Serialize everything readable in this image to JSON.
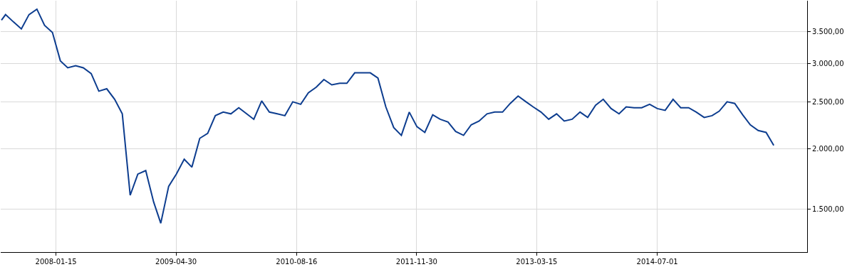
{
  "chart_data": {
    "type": "line",
    "log": "y",
    "grid": true,
    "marker": "none",
    "line_style": "solid",
    "x": [
      "2007-06-15",
      "2007-07",
      "2007-08",
      "2007-09",
      "2007-10",
      "2007-11",
      "2007-12",
      "2008-01",
      "2008-02",
      "2008-03",
      "2008-04",
      "2008-05",
      "2008-06",
      "2008-07",
      "2008-08",
      "2008-09",
      "2008-10",
      "2008-11",
      "2008-12",
      "2009-01",
      "2009-02",
      "2009-03",
      "2009-04",
      "2009-05",
      "2009-06",
      "2009-07",
      "2009-08",
      "2009-09",
      "2009-10",
      "2009-11",
      "2009-12",
      "2010-01",
      "2010-02",
      "2010-03",
      "2010-04",
      "2010-05",
      "2010-06",
      "2010-07",
      "2010-08",
      "2010-09",
      "2010-10",
      "2010-11",
      "2010-12",
      "2011-01",
      "2011-02",
      "2011-03",
      "2011-04",
      "2011-05",
      "2011-06",
      "2011-07",
      "2011-08",
      "2011-09",
      "2011-10",
      "2011-11",
      "2011-12",
      "2012-01",
      "2012-02",
      "2012-03",
      "2012-04",
      "2012-05",
      "2012-06",
      "2012-07",
      "2012-08",
      "2012-09",
      "2012-10",
      "2012-11",
      "2012-12",
      "2013-01",
      "2013-02",
      "2013-03",
      "2013-04",
      "2013-05",
      "2013-06",
      "2013-07",
      "2013-08",
      "2013-09",
      "2013-10",
      "2013-11",
      "2013-12",
      "2014-01",
      "2014-02",
      "2014-03",
      "2014-04",
      "2014-05",
      "2014-06",
      "2014-07",
      "2014-08",
      "2014-09",
      "2014-10",
      "2014-11",
      "2014-12",
      "2015-01",
      "2015-02",
      "2015-03",
      "2015-04",
      "2015-05",
      "2015-06",
      "2015-07",
      "2015-08",
      "2015-09",
      "2015-10"
    ],
    "series": [
      {
        "color": "#0d3d8f",
        "values": [
          3690,
          3790,
          3660,
          3540,
          3790,
          3890,
          3600,
          3480,
          3040,
          2940,
          2970,
          2940,
          2860,
          2630,
          2660,
          2530,
          2360,
          1600,
          1770,
          1800,
          1550,
          1400,
          1670,
          1770,
          1900,
          1830,
          2100,
          2150,
          2340,
          2380,
          2360,
          2430,
          2360,
          2300,
          2510,
          2380,
          2360,
          2340,
          2500,
          2470,
          2610,
          2680,
          2780,
          2710,
          2730,
          2730,
          2870,
          2870,
          2870,
          2800,
          2440,
          2210,
          2130,
          2380,
          2220,
          2160,
          2350,
          2300,
          2270,
          2170,
          2130,
          2240,
          2280,
          2360,
          2380,
          2380,
          2480,
          2570,
          2500,
          2440,
          2380,
          2300,
          2360,
          2280,
          2300,
          2380,
          2320,
          2460,
          2530,
          2420,
          2360,
          2440,
          2430,
          2430,
          2470,
          2420,
          2400,
          2530,
          2430,
          2430,
          2380,
          2320,
          2340,
          2390,
          2500,
          2480,
          2350,
          2240,
          2180,
          2160,
          2030
        ]
      }
    ],
    "xlim": [
      "2007-06-12",
      "2016-02-09"
    ],
    "xticks": [
      "2008-01-15",
      "2009-04-30",
      "2010-08-16",
      "2011-11-30",
      "2013-03-15",
      "2014-07-01"
    ],
    "ylim": [
      1220,
      4050
    ],
    "yticks": [
      {
        "value": 1500,
        "label": "1.500,00"
      },
      {
        "value": 2000,
        "label": "2.000,00"
      },
      {
        "value": 2500,
        "label": "2.500,00"
      },
      {
        "value": 3000,
        "label": "3.000,00"
      },
      {
        "value": 3500,
        "label": "3.500,00"
      }
    ]
  }
}
